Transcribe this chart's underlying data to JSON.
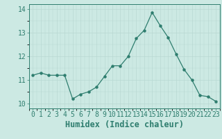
{
  "x": [
    0,
    1,
    2,
    3,
    4,
    5,
    6,
    7,
    8,
    9,
    10,
    11,
    12,
    13,
    14,
    15,
    16,
    17,
    18,
    19,
    20,
    21,
    22,
    23
  ],
  "y": [
    11.2,
    11.3,
    11.2,
    11.2,
    11.2,
    10.2,
    10.4,
    10.5,
    10.7,
    11.15,
    11.6,
    11.6,
    12.0,
    12.75,
    13.1,
    13.85,
    13.3,
    12.8,
    12.1,
    11.45,
    11.0,
    10.35,
    10.3,
    10.1
  ],
  "xlabel": "Humidex (Indice chaleur)",
  "ylim": [
    9.8,
    14.2
  ],
  "xlim": [
    -0.5,
    23.5
  ],
  "yticks": [
    10,
    11,
    12,
    13,
    14
  ],
  "xticks": [
    0,
    1,
    2,
    3,
    4,
    5,
    6,
    7,
    8,
    9,
    10,
    11,
    12,
    13,
    14,
    15,
    16,
    17,
    18,
    19,
    20,
    21,
    22,
    23
  ],
  "line_color": "#2e7d6e",
  "marker": "o",
  "marker_size": 2.2,
  "bg_color": "#cce9e3",
  "grid_color_major": "#b8d8d2",
  "xlabel_fontsize": 8.5,
  "tick_fontsize": 7
}
